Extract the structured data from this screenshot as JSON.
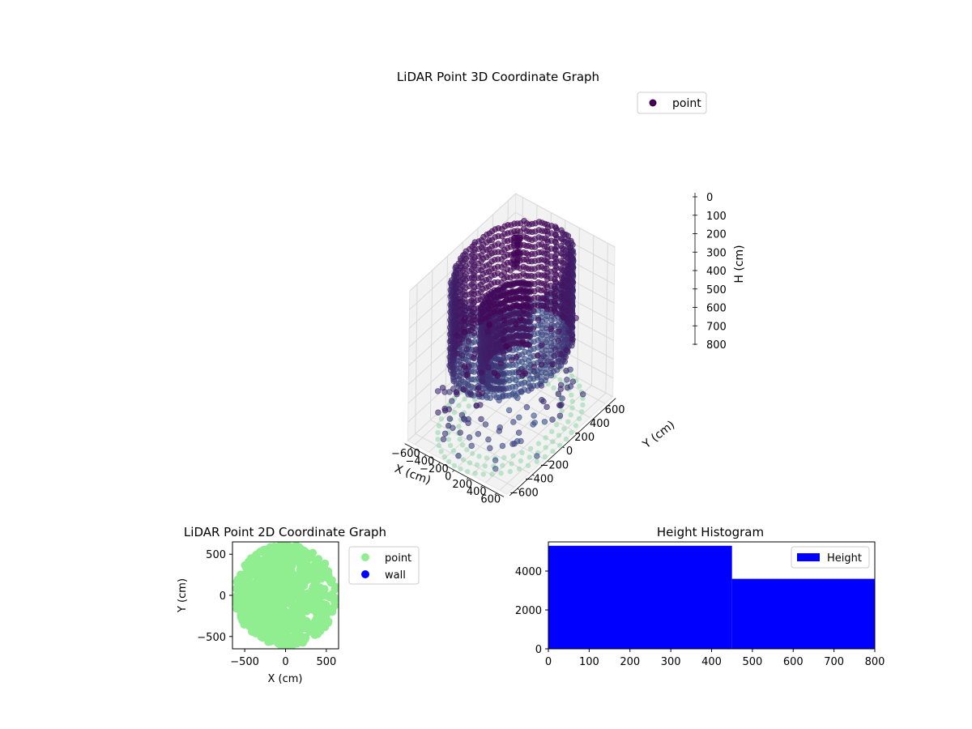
{
  "colors": {
    "point_3d_far": "#440154",
    "point_3d_near": "#3b528b",
    "ground_point": "#8fd7a8",
    "scatter_point_2d": "#90ee90",
    "wall": "#0000ff",
    "histogram_bar": "#0000ff",
    "pane": "#f2f2f2",
    "grid": "#d9d9d9"
  },
  "chart_data": [
    {
      "type": "scatter",
      "projection": "3d",
      "title": "LiDAR Point 3D Coordinate Graph",
      "xlabel": "X (cm)",
      "ylabel": "Y (cm)",
      "zlabel": "H (cm)",
      "xlim": [
        -700,
        700
      ],
      "ylim": [
        -700,
        700
      ],
      "zlim": [
        800,
        0
      ],
      "x_ticks": [
        "−600",
        "−400",
        "−200",
        "0",
        "200",
        "400",
        "600"
      ],
      "y_ticks": [
        "−600",
        "−400",
        "−200",
        "0",
        "200",
        "400",
        "600"
      ],
      "z_ticks": [
        "0",
        "100",
        "200",
        "300",
        "400",
        "500",
        "600",
        "700",
        "800"
      ],
      "legend": [
        "point"
      ],
      "legend_position": "top-right",
      "series": [
        {
          "name": "point",
          "wall_radius_cm": 580,
          "wall_height_range_cm": [
            0,
            450
          ],
          "inner_radius_cm": 290,
          "floor_ring_radii_cm": [
            500,
            600,
            700
          ],
          "floor_height_cm": 800,
          "object_center_cm": [
            -280,
            330,
            0
          ]
        }
      ],
      "grid": true
    },
    {
      "type": "scatter",
      "title": "LiDAR Point 2D Coordinate Graph",
      "xlabel": "X (cm)",
      "ylabel": "Y (cm)",
      "xlim": [
        -650,
        650
      ],
      "ylim": [
        -650,
        650
      ],
      "x_ticks": [
        "−500",
        "0",
        "500"
      ],
      "y_ticks": [
        "500",
        "0",
        "−500"
      ],
      "legend": [
        "point",
        "wall"
      ],
      "legend_position": "outside-right",
      "series": [
        {
          "name": "point",
          "coverage_radius_cm": 620
        },
        {
          "name": "wall",
          "values": []
        }
      ]
    },
    {
      "type": "bar",
      "title": "Height Histogram",
      "legend": [
        "Height"
      ],
      "legend_position": "top-right",
      "xlim": [
        0,
        800
      ],
      "ylim": [
        0,
        5500
      ],
      "x_ticks": [
        "0",
        "100",
        "200",
        "300",
        "400",
        "500",
        "600",
        "700",
        "800"
      ],
      "y_ticks": [
        "0",
        "2000",
        "4000"
      ],
      "bins": [
        {
          "start": 0,
          "end": 450,
          "count": 5300
        },
        {
          "start": 450,
          "end": 800,
          "count": 3600
        }
      ]
    }
  ]
}
